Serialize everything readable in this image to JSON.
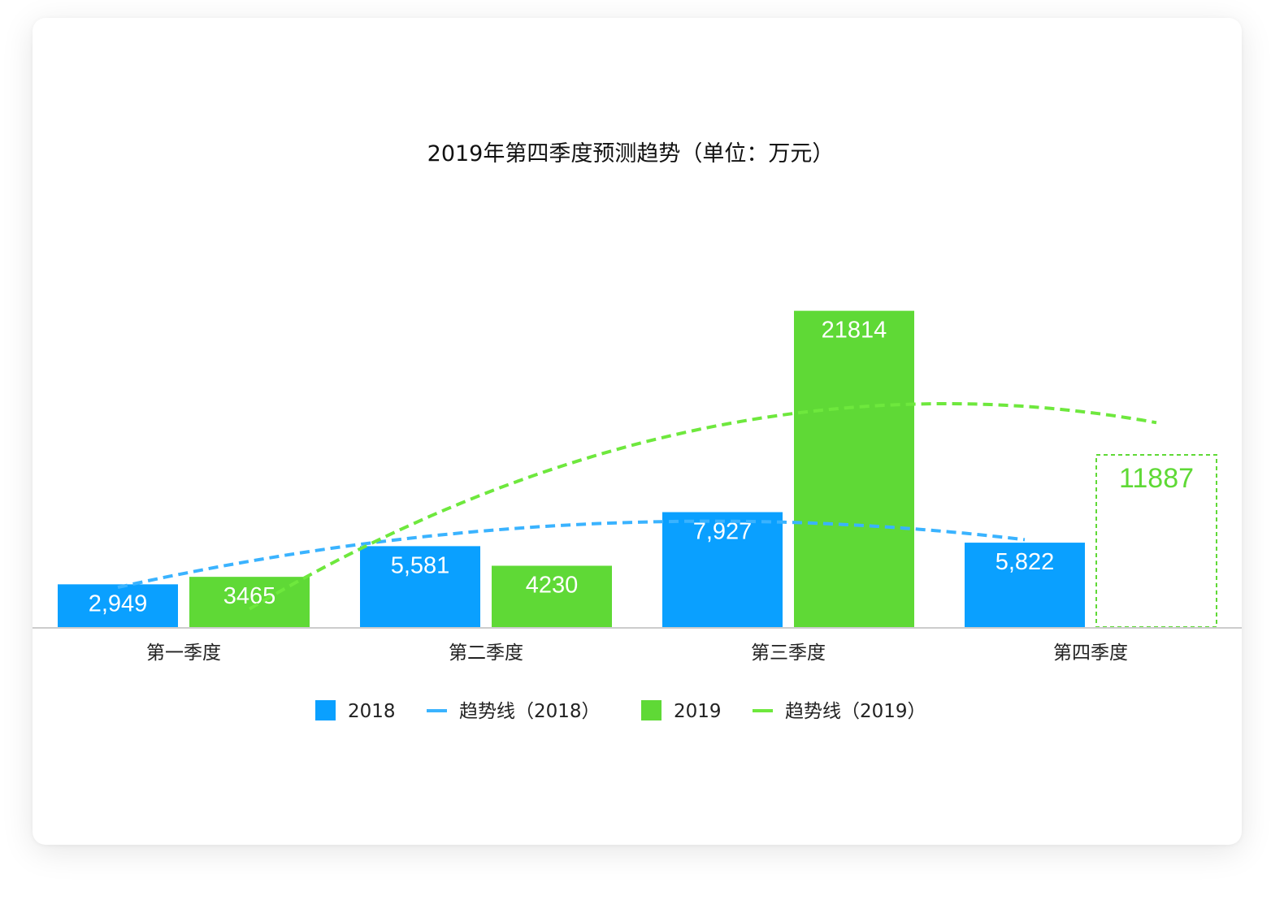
{
  "chart_data": {
    "type": "bar",
    "title": "2019年第四季度预测趋势（单位：万元）",
    "categories": [
      "第一季度",
      "第二季度",
      "第三季度",
      "第四季度"
    ],
    "series": [
      {
        "name": "2018",
        "type": "bar",
        "color": "#0aa0ff",
        "values": [
          2949,
          5581,
          7927,
          5822
        ],
        "labels": [
          "2,949",
          "5,581",
          "7,927",
          "5,822"
        ]
      },
      {
        "name": "2019",
        "type": "bar",
        "color": "#5fd936",
        "values": [
          3465,
          4230,
          21814,
          11887
        ],
        "labels": [
          "3465",
          "4230",
          "21814",
          "11887"
        ],
        "forecast_index": 3
      },
      {
        "name": "趋势线（2018）",
        "type": "line",
        "style": "dashed",
        "color": "#3ab3ff",
        "trend_of": "2018"
      },
      {
        "name": "趋势线（2019）",
        "type": "line",
        "style": "dashed",
        "color": "#6ee83d",
        "trend_of": "2019"
      }
    ],
    "ylim": [
      0,
      28000
    ],
    "xlabel": "",
    "ylabel": "",
    "grid": false,
    "legend_position": "bottom"
  }
}
